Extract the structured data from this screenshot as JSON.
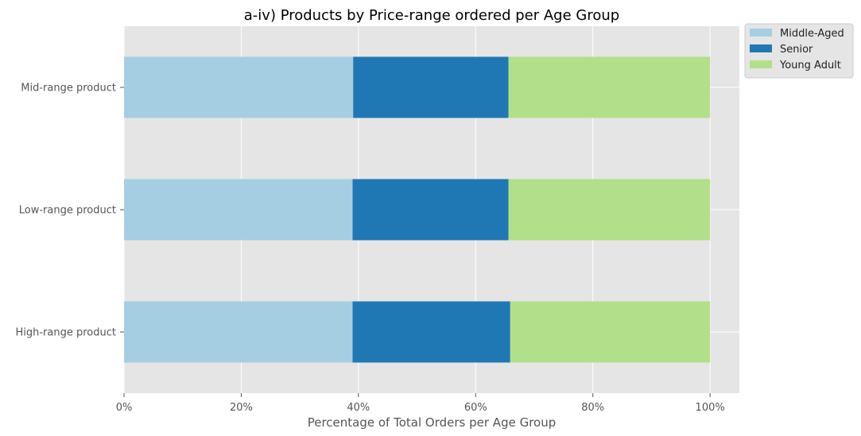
{
  "chart_data": {
    "type": "bar",
    "orientation": "horizontal",
    "stacked": true,
    "title": "a-iv) Products by Price-range ordered per Age Group",
    "xlabel": "Percentage of Total Orders per Age Group",
    "ylabel": "",
    "xlim": [
      0,
      105
    ],
    "xticks": [
      0,
      20,
      40,
      60,
      80,
      100
    ],
    "xtick_labels": [
      "0%",
      "20%",
      "40%",
      "60%",
      "80%",
      "100%"
    ],
    "categories": [
      "High-range product",
      "Low-range product",
      "Mid-range product"
    ],
    "series": [
      {
        "name": "Middle-Aged",
        "color": "#a6cee3",
        "values": [
          39.0,
          39.0,
          39.1
        ]
      },
      {
        "name": "Senior",
        "color": "#1f78b4",
        "values": [
          26.9,
          26.6,
          26.5
        ]
      },
      {
        "name": "Young Adult",
        "color": "#b2df8a",
        "values": [
          34.1,
          34.4,
          34.4
        ]
      }
    ],
    "grid": true,
    "legend_position": "outside-top-right",
    "background": "#e5e5e5"
  }
}
